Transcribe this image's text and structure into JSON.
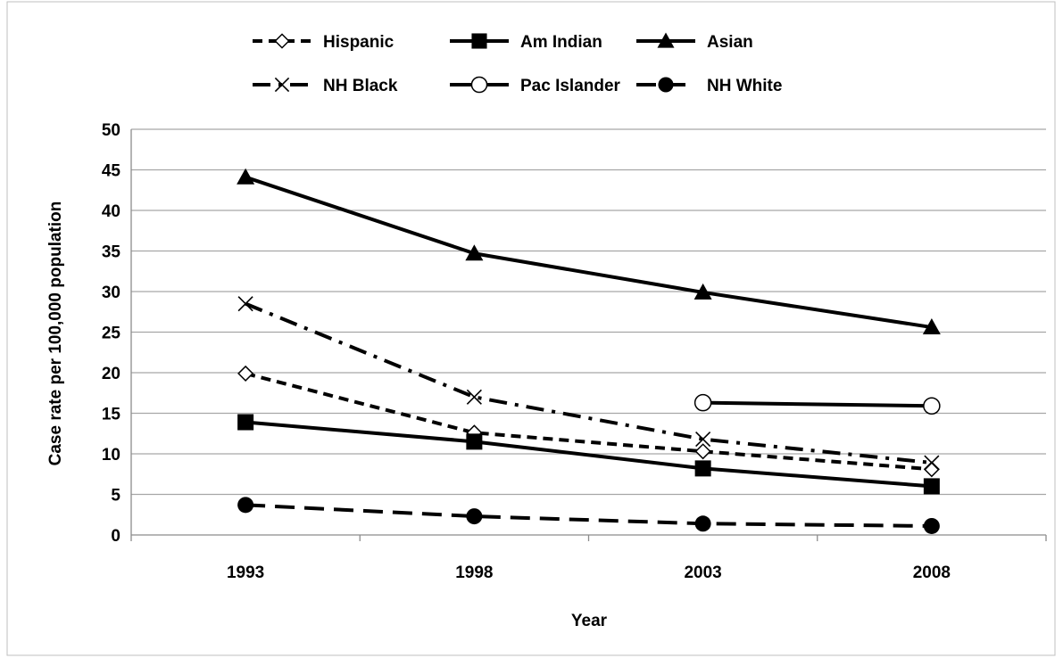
{
  "chart_data": {
    "type": "line",
    "title": "",
    "xlabel": "Year",
    "ylabel": "Case rate per 100,000 population",
    "x": [
      "1993",
      "1998",
      "2003",
      "2008"
    ],
    "ylim": [
      0,
      50
    ],
    "yticks": [
      0,
      5,
      10,
      15,
      20,
      25,
      30,
      35,
      40,
      45,
      50
    ],
    "grid": "horizontal",
    "legend_position": "top",
    "series": [
      {
        "name": "Hispanic",
        "marker": "diamond-open",
        "line": "dashed",
        "values": [
          19.9,
          12.6,
          10.3,
          8.1
        ]
      },
      {
        "name": "Am Indian",
        "marker": "square-filled",
        "line": "solid",
        "values": [
          13.9,
          11.5,
          8.2,
          6.0
        ]
      },
      {
        "name": "Asian",
        "marker": "triangle-filled",
        "line": "solid",
        "values": [
          44.1,
          34.7,
          29.9,
          25.6
        ]
      },
      {
        "name": "NH Black",
        "marker": "x",
        "line": "dash-dot",
        "values": [
          28.5,
          17.0,
          11.8,
          8.9
        ]
      },
      {
        "name": "Pac Islander",
        "marker": "circle-open",
        "line": "solid",
        "values": [
          null,
          null,
          16.3,
          15.9
        ]
      },
      {
        "name": "NH White",
        "marker": "circle-filled",
        "line": "long-dash",
        "values": [
          3.7,
          2.3,
          1.4,
          1.1
        ]
      }
    ],
    "colors": {
      "line": "#000000",
      "grid": "#a6a6a6",
      "frame": "#bfbfbf"
    }
  }
}
